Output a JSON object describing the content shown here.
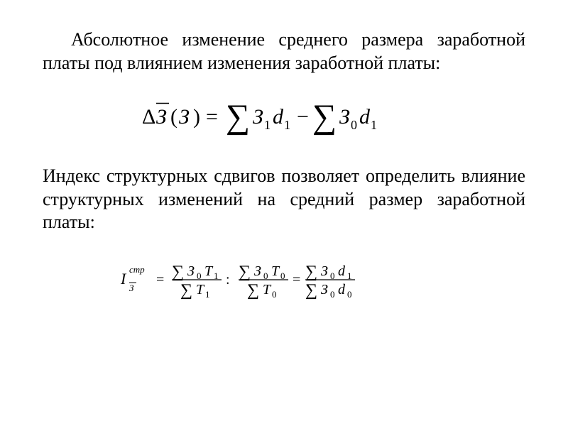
{
  "paragraph1": "Абсолютное изменение среднего размера заработной платы под влиянием изменения заработной платы:",
  "paragraph2": "Индекс структурных сдвигов позволяет определить влияние структурных изменений на средний размер заработной платы:",
  "formula1": {
    "type": "equation",
    "text_color": "#000000",
    "font_family": "Times New Roman, serif",
    "font_size_main": 30,
    "font_size_sub": 18,
    "lhs": {
      "delta": "Δ",
      "var": "З",
      "bar": true,
      "arg": "З"
    },
    "rhs_terms": [
      {
        "op": "∑",
        "coef": "З",
        "coef_sub": "1",
        "var": "d",
        "var_sub": "1",
        "sign": ""
      },
      {
        "op": "∑",
        "coef": "З",
        "coef_sub": "0",
        "var": "d",
        "var_sub": "1",
        "sign": "−"
      }
    ]
  },
  "formula2": {
    "type": "equation",
    "text_color": "#000000",
    "font_family": "Times New Roman, serif",
    "font_size_main": 20,
    "font_size_sub": 13,
    "lhs": {
      "var": "I",
      "sub": "З",
      "sub_bar": true,
      "sup": "стр"
    },
    "parts": [
      {
        "num": {
          "op": "∑",
          "a": "З",
          "as": "0",
          "b": "T",
          "bs": "1"
        },
        "den": {
          "op": "∑",
          "b": "T",
          "bs": "1"
        }
      },
      {
        "sep": ":"
      },
      {
        "num": {
          "op": "∑",
          "a": "З",
          "as": "0",
          "b": "T",
          "bs": "0"
        },
        "den": {
          "op": "∑",
          "b": "T",
          "bs": "0"
        }
      },
      {
        "sep": "="
      },
      {
        "num": {
          "op": "∑",
          "a": "З",
          "as": "0",
          "b": "d",
          "bs": "1"
        },
        "den": {
          "op": "∑",
          "a": "З",
          "as": "0",
          "b": "d",
          "bs": "0"
        }
      }
    ]
  }
}
